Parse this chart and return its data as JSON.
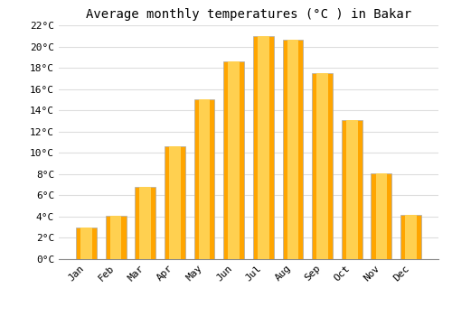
{
  "title": "Average monthly temperatures (°C ) in Bakar",
  "months": [
    "Jan",
    "Feb",
    "Mar",
    "Apr",
    "May",
    "Jun",
    "Jul",
    "Aug",
    "Sep",
    "Oct",
    "Nov",
    "Dec"
  ],
  "values": [
    3.0,
    4.1,
    6.8,
    10.6,
    15.0,
    18.6,
    21.0,
    20.6,
    17.5,
    13.1,
    8.1,
    4.2
  ],
  "bar_color_main": "#FFA500",
  "bar_color_light": "#FFD050",
  "bar_color_dark": "#E08000",
  "bar_edge_color": "#AAAAAA",
  "ylim": [
    0,
    22
  ],
  "yticks": [
    0,
    2,
    4,
    6,
    8,
    10,
    12,
    14,
    16,
    18,
    20,
    22
  ],
  "background_color": "#FFFFFF",
  "grid_color": "#DDDDDD",
  "title_fontsize": 10,
  "tick_fontsize": 8,
  "bar_width": 0.7
}
